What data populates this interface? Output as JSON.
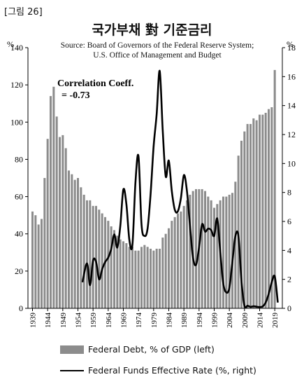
{
  "figure_label": "[그림 26]",
  "title": "국가부채 對 기준금리",
  "source_line1": "Source: Board of Governors of the Federal Reserve System;",
  "source_line2": "U.S. Office of Management and Budget",
  "annotation_line1": "Correlation Coeff.",
  "annotation_line2": "= -0.73",
  "legend": {
    "debt": "Federal Debt, % of GDP (left)",
    "rate": "Federal Funds Effective Rate (%, right)"
  },
  "colors": {
    "bars": "#8c8c8c",
    "line": "#000000"
  },
  "chart_data": {
    "type": "bar+line",
    "left_axis": {
      "unit": "%",
      "min": 0,
      "max": 140,
      "ticks": [
        0,
        20,
        40,
        60,
        80,
        100,
        120,
        140
      ]
    },
    "right_axis": {
      "unit": "%",
      "min": 0,
      "max": 18,
      "ticks": [
        0,
        2,
        4,
        6,
        8,
        10,
        12,
        14,
        16,
        18
      ]
    },
    "x_tick_labels": [
      "1939",
      "1944",
      "1949",
      "1954",
      "1959",
      "1964",
      "1969",
      "1974",
      "1979",
      "1984",
      "1989",
      "1994",
      "1999",
      "2004",
      "2009",
      "2014",
      "2019"
    ],
    "series": [
      {
        "name": "Federal Debt, % of GDP (left)",
        "type": "bar",
        "start_year": 1939,
        "values": [
          52,
          50,
          45,
          48,
          70,
          91,
          114,
          119,
          103,
          92,
          93,
          86,
          74,
          72,
          69,
          70,
          65,
          61,
          58,
          58,
          55,
          55,
          53,
          51,
          49,
          47,
          44,
          42,
          39,
          37,
          36,
          35,
          33,
          33,
          31,
          31,
          33,
          34,
          33,
          32,
          31,
          32,
          32,
          38,
          40,
          43,
          47,
          49,
          51,
          52,
          55,
          58,
          61,
          63,
          64,
          64,
          64,
          63,
          60,
          58,
          54,
          56,
          58,
          60,
          60,
          61,
          62,
          68,
          82,
          90,
          95,
          99,
          99,
          102,
          101,
          104,
          104,
          105,
          107,
          108,
          128
        ]
      },
      {
        "name": "Federal Funds Effective Rate (%, right)",
        "type": "line",
        "points": [
          [
            1955.5,
            1.8
          ],
          [
            1957,
            3.1
          ],
          [
            1958,
            1.6
          ],
          [
            1959,
            3.3
          ],
          [
            1960,
            3.2
          ],
          [
            1961,
            2.0
          ],
          [
            1962,
            2.7
          ],
          [
            1963,
            3.2
          ],
          [
            1964,
            3.5
          ],
          [
            1965,
            4.1
          ],
          [
            1966,
            5.1
          ],
          [
            1967,
            4.2
          ],
          [
            1968,
            5.7
          ],
          [
            1969,
            8.2
          ],
          [
            1970,
            7.2
          ],
          [
            1971,
            4.7
          ],
          [
            1972,
            4.4
          ],
          [
            1973,
            8.7
          ],
          [
            1974,
            10.5
          ],
          [
            1975,
            5.8
          ],
          [
            1976,
            5.0
          ],
          [
            1977,
            5.5
          ],
          [
            1978,
            7.9
          ],
          [
            1979,
            11.2
          ],
          [
            1980,
            13.4
          ],
          [
            1981,
            16.4
          ],
          [
            1982,
            12.3
          ],
          [
            1983,
            9.1
          ],
          [
            1984,
            10.2
          ],
          [
            1985,
            8.1
          ],
          [
            1986,
            6.8
          ],
          [
            1987,
            6.7
          ],
          [
            1988,
            7.6
          ],
          [
            1989,
            9.2
          ],
          [
            1990,
            8.1
          ],
          [
            1991,
            5.7
          ],
          [
            1992,
            3.5
          ],
          [
            1993,
            3.0
          ],
          [
            1994,
            4.2
          ],
          [
            1995,
            5.8
          ],
          [
            1996,
            5.3
          ],
          [
            1997,
            5.5
          ],
          [
            1998,
            5.4
          ],
          [
            1999,
            5.0
          ],
          [
            2000,
            6.2
          ],
          [
            2001,
            3.9
          ],
          [
            2002,
            1.7
          ],
          [
            2003,
            1.1
          ],
          [
            2004,
            1.4
          ],
          [
            2005,
            3.2
          ],
          [
            2006,
            5.0
          ],
          [
            2007,
            5.0
          ],
          [
            2008,
            1.9
          ],
          [
            2009,
            0.16
          ],
          [
            2010,
            0.18
          ],
          [
            2011,
            0.1
          ],
          [
            2012,
            0.14
          ],
          [
            2013,
            0.11
          ],
          [
            2014,
            0.09
          ],
          [
            2015,
            0.13
          ],
          [
            2016,
            0.4
          ],
          [
            2017,
            1.0
          ],
          [
            2018,
            1.8
          ],
          [
            2019,
            2.2
          ],
          [
            2020,
            0.4
          ]
        ]
      }
    ]
  }
}
